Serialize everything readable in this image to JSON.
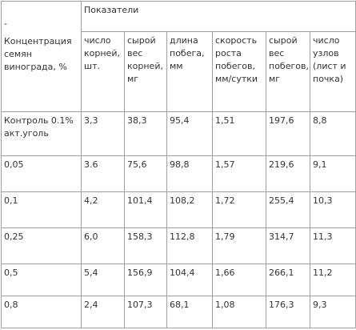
{
  "header": {
    "corner_dash": "-",
    "corner": "Концентрация семян винограда, %",
    "group": "Показатели",
    "columns": [
      "число корней, шт.",
      "сырой вес корней, мг",
      "длина побега, мм",
      "скорость роста побегов, мм/сутки",
      "сырой вес побегов, мг",
      "число узлов (лист и почка)"
    ]
  },
  "table": {
    "rows": [
      [
        "Контроль 0.1% акт.уголь",
        "3,3",
        "38,3",
        "95,4",
        "1,51",
        "197,6",
        "8,8"
      ],
      [
        "0,05",
        "3.6",
        "75,6",
        "98,8",
        "1,57",
        "219,6",
        "9,1"
      ],
      [
        "0,1",
        "4,2",
        "101,4",
        "108,2",
        "1,72",
        "255,4",
        "10,3"
      ],
      [
        "0,25",
        "6,0",
        "158,3",
        "112,8",
        "1,79",
        "314,7",
        "11,3"
      ],
      [
        "0,5",
        "5,4",
        "156,9",
        "104,4",
        "1,66",
        "266,1",
        "11,2"
      ],
      [
        "0,8",
        "2,4",
        "107,3",
        "68,1",
        "1,08",
        "176,3",
        "9,3"
      ]
    ]
  }
}
